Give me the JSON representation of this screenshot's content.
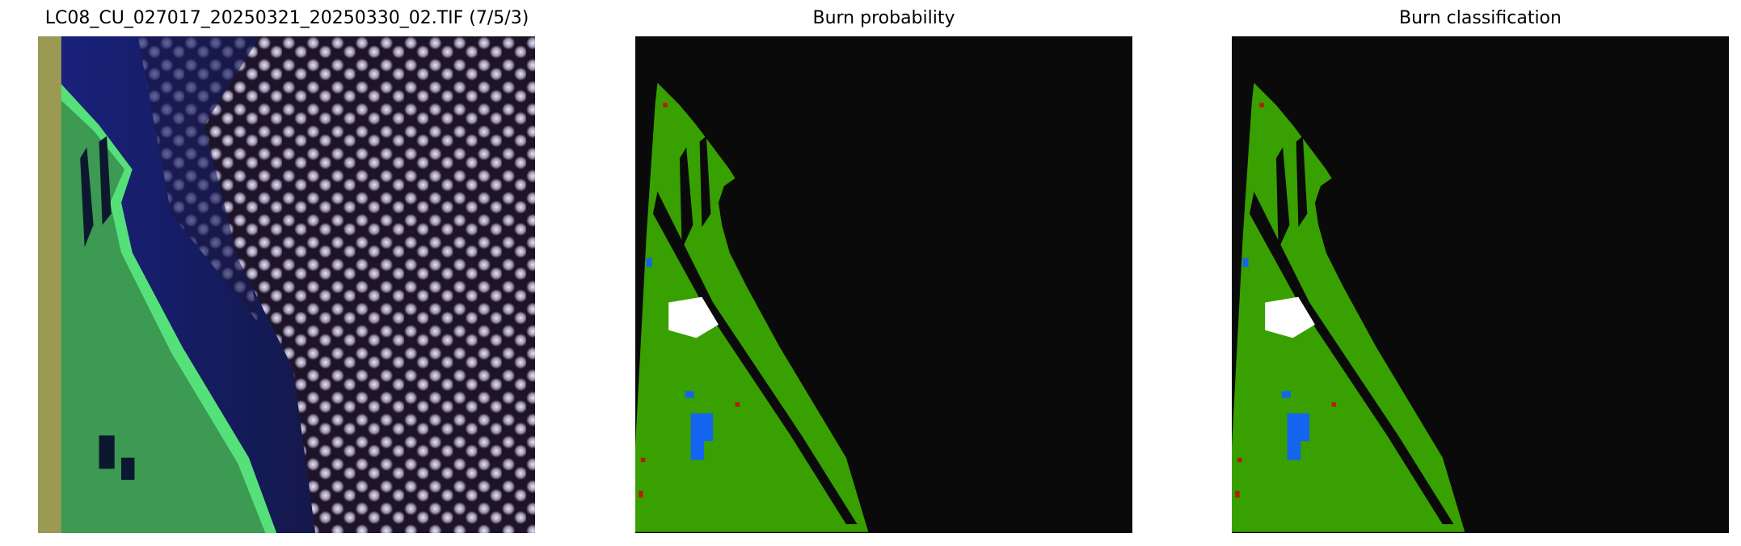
{
  "panels": [
    {
      "title": "LC08_CU_027017_20250321_20250330_02.TIF (7/5/3)"
    },
    {
      "title": "Burn probability"
    },
    {
      "title": "Burn classification"
    }
  ],
  "colors": {
    "background": "#0a0a0a",
    "unburned": "#38a000",
    "water": "#1464f0",
    "burned": "#b41e00",
    "cloud": "#ffffff",
    "ocean": "#141c6e",
    "nodata_strip": "#9a9a55"
  }
}
